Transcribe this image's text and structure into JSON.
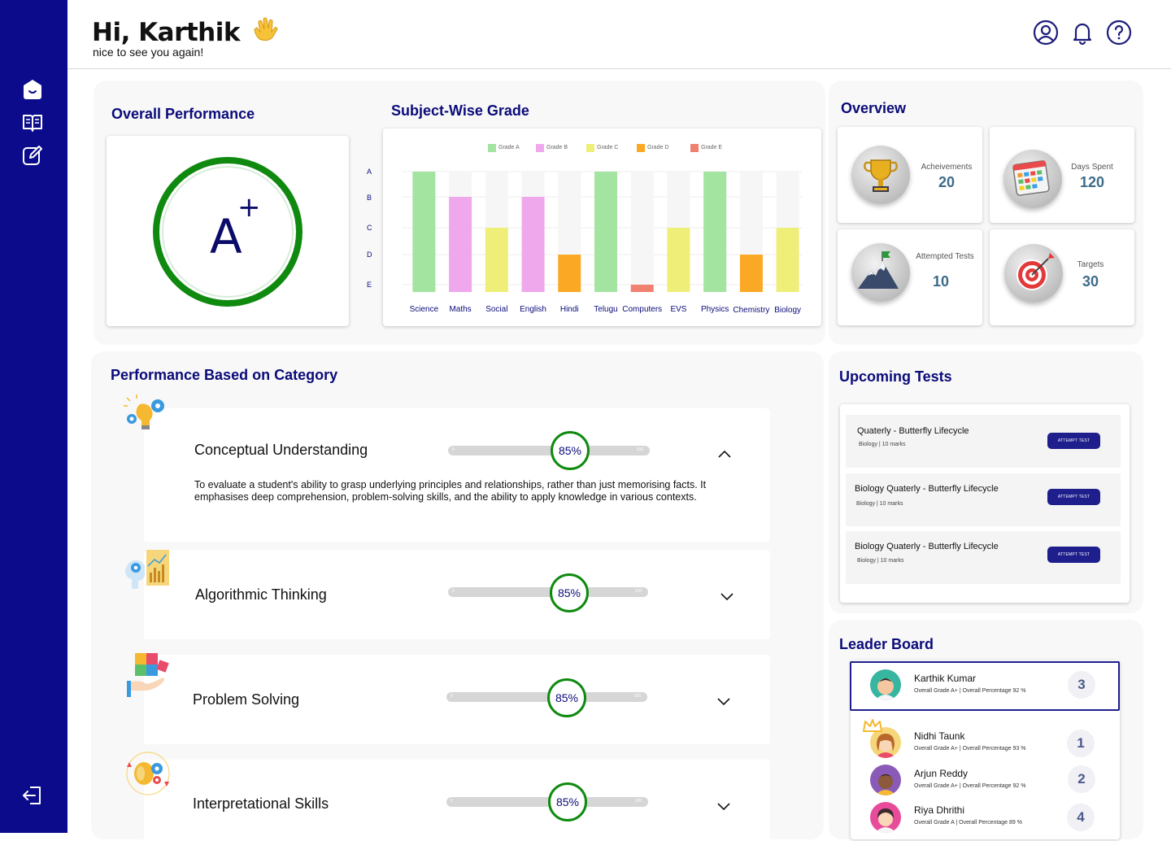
{
  "header": {
    "greeting": "Hi, Karthik",
    "subtitle": "nice to see you again!"
  },
  "sidebar": {
    "items": [
      "home-icon",
      "book-icon",
      "edit-icon"
    ],
    "logout": "logout-icon"
  },
  "overall": {
    "title": "Overall Performance",
    "grade": "A",
    "grade_mark": "+"
  },
  "subject_grade": {
    "title": "Subject-Wise Grade"
  },
  "chart_data": {
    "type": "bar",
    "categories": [
      "Science",
      "Maths",
      "Social",
      "English",
      "Hindi",
      "Telugu",
      "Computers",
      "EVS",
      "Physics",
      "Chemistry",
      "Biology"
    ],
    "y_ticks": [
      "A",
      "B",
      "C",
      "D",
      "E"
    ],
    "legend": [
      "Grade A",
      "Grade B",
      "Grade C",
      "Grade D",
      "Grade E"
    ],
    "grades": [
      "A",
      "B",
      "C",
      "B",
      "D",
      "A",
      "E",
      "C",
      "A",
      "D",
      "C"
    ],
    "colors": {
      "A": "#a3e4a0",
      "B": "#f0a8ec",
      "C": "#eeee78",
      "D": "#fba925",
      "E": "#f08070"
    }
  },
  "overview": {
    "title": "Overview",
    "items": [
      {
        "label": "Acheivements",
        "value": "20",
        "icon": "trophy-icon"
      },
      {
        "label": "Days Spent",
        "value": "120",
        "icon": "calendar-icon"
      },
      {
        "label": "Attempted Tests",
        "value": "10",
        "icon": "mountain-flag-icon"
      },
      {
        "label": "Targets",
        "value": "30",
        "icon": "target-icon"
      }
    ]
  },
  "categories": {
    "title": "Performance Based on Category",
    "items": [
      {
        "name": "Conceptual Understanding",
        "percent": "85%",
        "min": "0",
        "max": "100",
        "value": 0.85,
        "expanded": true,
        "icon": "lightbulb-gear-icon",
        "description": "To evaluate a student's ability to grasp underlying principles and relationships, rather than just memorising facts. It emphasises deep comprehension, problem-solving skills, and the ability to apply knowledge in various contexts."
      },
      {
        "name": "Algorithmic Thinking",
        "percent": "85%",
        "min": "0",
        "max": "100",
        "value": 0.85,
        "expanded": false,
        "icon": "brain-chart-icon"
      },
      {
        "name": "Problem Solving",
        "percent": "85%",
        "min": "0",
        "max": "100",
        "value": 0.85,
        "expanded": false,
        "icon": "puzzle-hand-icon"
      },
      {
        "name": "Interpretational Skills",
        "percent": "85%",
        "min": "0",
        "max": "100",
        "value": 0.85,
        "expanded": false,
        "icon": "brain-gears-icon"
      }
    ]
  },
  "upcoming": {
    "title": "Upcoming Tests",
    "button_label": "ATTEMPT TEST",
    "tests": [
      {
        "title": "Quaterly  - Butterfly Lifecycle",
        "sub": "Biology | 10 marks"
      },
      {
        "title": "Biology Quaterly  - Butterfly Lifecycle",
        "sub": "Biology | 10 marks"
      },
      {
        "title": "Biology Quaterly  - Butterfly Lifecycle",
        "sub": "Biology | 10 marks"
      }
    ]
  },
  "leaderboard": {
    "title": "Leader Board",
    "entries": [
      {
        "name": "Karthik Kumar",
        "sub": "Overall Grade A+ | Overall Percentage 92 %",
        "rank": "3"
      },
      {
        "name": "Nidhi Taunk",
        "sub": "Overall Grade A+ | Overall Percentage 93 %",
        "rank": "1"
      },
      {
        "name": "Arjun Reddy",
        "sub": "Overall Grade A+ | Overall Percentage 92 %",
        "rank": "2"
      },
      {
        "name": "Riya Dhrithi",
        "sub": "Overall Grade A | Overall Percentage 89 %",
        "rank": "4"
      }
    ]
  }
}
